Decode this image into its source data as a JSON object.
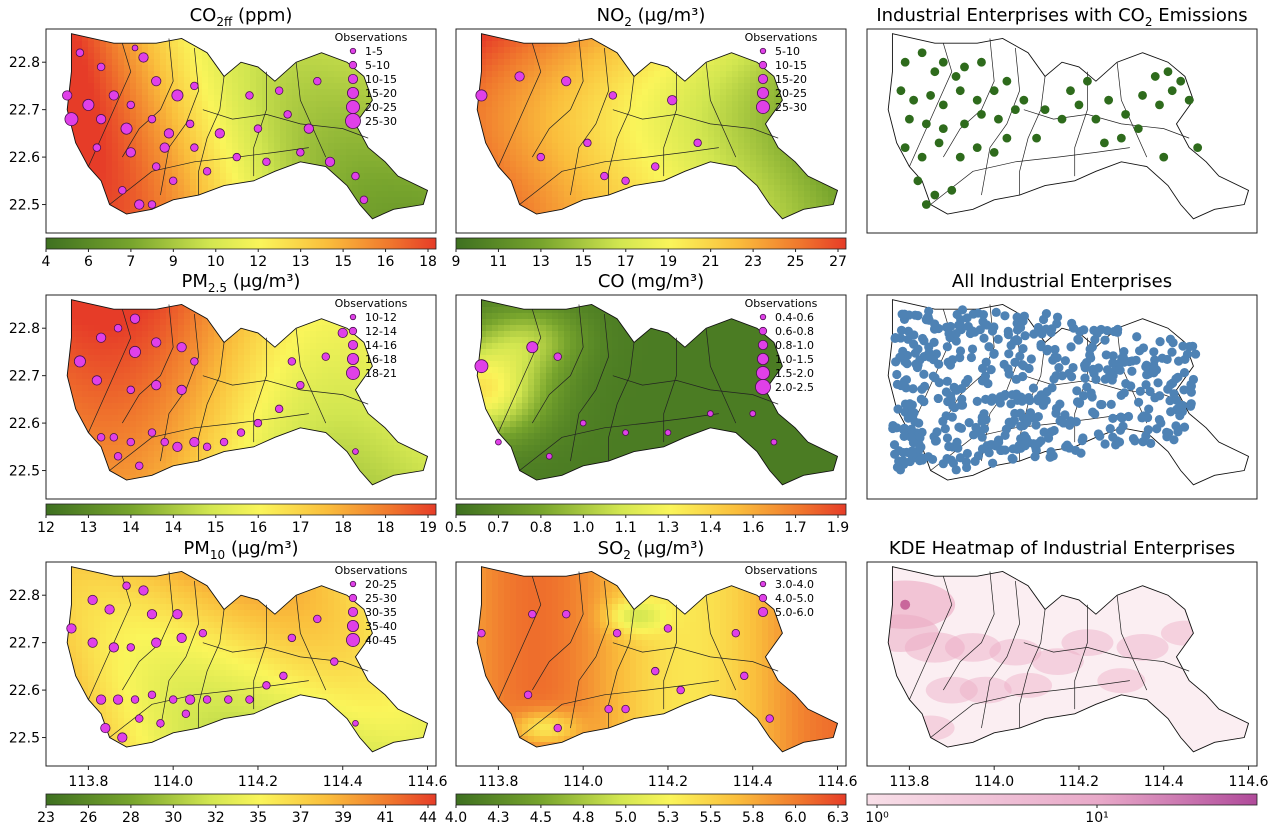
{
  "figure": {
    "x_ticks": [
      "113.8",
      "114.0",
      "114.2",
      "114.4",
      "114.6"
    ],
    "y_ticks": [
      "22.8",
      "22.7",
      "22.6",
      "22.5"
    ],
    "legend_title": "Observations"
  },
  "chart_data": [
    {
      "id": "co2ff",
      "type": "heatmap",
      "title_main": "CO",
      "title_sub": "2ff",
      "title_tail": " (ppm)",
      "legend": [
        "1-5",
        "5-10",
        "10-15",
        "15-20",
        "20-25",
        "25-30"
      ],
      "colorbar_ticks": [
        "4",
        "6",
        "7",
        "9",
        "10",
        "12",
        "13",
        "15",
        "16",
        "18"
      ],
      "colorbar_range": [
        4,
        18.5
      ],
      "colormap": "green-yellow-red",
      "observations": [
        [
          113.78,
          22.82,
          2
        ],
        [
          113.83,
          22.79,
          2
        ],
        [
          113.91,
          22.83,
          1
        ],
        [
          113.93,
          22.81,
          3
        ],
        [
          113.75,
          22.73,
          3
        ],
        [
          113.8,
          22.71,
          4
        ],
        [
          113.86,
          22.73,
          3
        ],
        [
          113.9,
          22.71,
          2
        ],
        [
          113.96,
          22.76,
          3
        ],
        [
          114.01,
          22.73,
          4
        ],
        [
          114.05,
          22.75,
          2
        ],
        [
          113.76,
          22.68,
          5
        ],
        [
          113.83,
          22.68,
          3
        ],
        [
          113.89,
          22.66,
          4
        ],
        [
          113.95,
          22.68,
          2
        ],
        [
          113.99,
          22.65,
          3
        ],
        [
          114.04,
          22.67,
          2
        ],
        [
          113.82,
          22.62,
          2
        ],
        [
          113.9,
          22.61,
          3
        ],
        [
          113.98,
          22.62,
          3
        ],
        [
          114.05,
          22.62,
          2
        ],
        [
          114.11,
          22.65,
          3
        ],
        [
          114.2,
          22.66,
          2
        ],
        [
          114.27,
          22.69,
          2
        ],
        [
          114.32,
          22.66,
          3
        ],
        [
          114.15,
          22.6,
          2
        ],
        [
          114.22,
          22.59,
          2
        ],
        [
          114.3,
          22.61,
          2
        ],
        [
          114.37,
          22.59,
          3
        ],
        [
          114.43,
          22.56,
          2
        ],
        [
          113.88,
          22.53,
          2
        ],
        [
          113.92,
          22.5,
          3
        ],
        [
          113.96,
          22.58,
          2
        ],
        [
          114.0,
          22.55,
          2
        ],
        [
          114.08,
          22.57,
          2
        ],
        [
          114.45,
          22.51,
          2
        ],
        [
          113.95,
          22.5,
          2
        ],
        [
          114.18,
          22.73,
          2
        ],
        [
          114.25,
          22.74,
          2
        ],
        [
          114.34,
          22.76,
          2
        ]
      ]
    },
    {
      "id": "no2",
      "type": "heatmap",
      "title_main": "NO",
      "title_sub": "2",
      "title_tail": " (μg/m³)",
      "legend": [
        "5-10",
        "10-15",
        "15-20",
        "20-25",
        "25-30"
      ],
      "colorbar_ticks": [
        "9",
        "11",
        "13",
        "15",
        "17",
        "19",
        "21",
        "23",
        "25",
        "27"
      ],
      "colorbar_range": [
        9,
        29
      ],
      "colormap": "green-yellow-red",
      "observations": [
        [
          113.76,
          22.73,
          4
        ],
        [
          113.85,
          22.77,
          3
        ],
        [
          113.96,
          22.76,
          3
        ],
        [
          114.07,
          22.73,
          2
        ],
        [
          114.21,
          22.72,
          3
        ],
        [
          113.9,
          22.6,
          2
        ],
        [
          114.01,
          22.63,
          2
        ],
        [
          114.05,
          22.56,
          2
        ],
        [
          114.1,
          22.55,
          2
        ],
        [
          114.17,
          22.58,
          2
        ],
        [
          114.27,
          22.63,
          2
        ]
      ]
    },
    {
      "id": "industrial_co2",
      "type": "scatter",
      "title_main": "Industrial Enterprises with CO",
      "title_sub": "2",
      "title_tail": " Emissions",
      "colormap": "dark-green-points",
      "points": [
        [
          113.79,
          22.8
        ],
        [
          113.83,
          22.82
        ],
        [
          113.86,
          22.78
        ],
        [
          113.88,
          22.8
        ],
        [
          113.91,
          22.77
        ],
        [
          113.93,
          22.79
        ],
        [
          113.97,
          22.8
        ],
        [
          113.78,
          22.74
        ],
        [
          113.81,
          22.72
        ],
        [
          113.85,
          22.73
        ],
        [
          113.88,
          22.71
        ],
        [
          113.92,
          22.74
        ],
        [
          113.96,
          22.72
        ],
        [
          114.0,
          22.74
        ],
        [
          114.03,
          22.76
        ],
        [
          113.8,
          22.68
        ],
        [
          113.84,
          22.67
        ],
        [
          113.88,
          22.66
        ],
        [
          113.93,
          22.67
        ],
        [
          113.97,
          22.69
        ],
        [
          114.01,
          22.68
        ],
        [
          114.05,
          22.7
        ],
        [
          113.79,
          22.62
        ],
        [
          113.83,
          22.6
        ],
        [
          113.87,
          22.63
        ],
        [
          113.92,
          22.6
        ],
        [
          113.96,
          22.62
        ],
        [
          114.0,
          22.61
        ],
        [
          113.82,
          22.55
        ],
        [
          113.86,
          22.52
        ],
        [
          113.9,
          22.53
        ],
        [
          113.84,
          22.5
        ],
        [
          114.12,
          22.7
        ],
        [
          114.16,
          22.68
        ],
        [
          114.2,
          22.71
        ],
        [
          114.24,
          22.68
        ],
        [
          114.27,
          22.72
        ],
        [
          114.31,
          22.69
        ],
        [
          114.35,
          22.73
        ],
        [
          114.39,
          22.71
        ],
        [
          114.42,
          22.74
        ],
        [
          114.3,
          22.64
        ],
        [
          114.34,
          22.66
        ],
        [
          114.26,
          22.63
        ],
        [
          114.38,
          22.77
        ],
        [
          114.41,
          22.78
        ],
        [
          114.44,
          22.76
        ],
        [
          114.46,
          22.72
        ],
        [
          114.48,
          22.62
        ],
        [
          114.4,
          22.6
        ],
        [
          114.1,
          22.64
        ],
        [
          114.07,
          22.72
        ],
        [
          114.03,
          22.64
        ],
        [
          114.18,
          22.74
        ],
        [
          114.22,
          22.76
        ]
      ]
    },
    {
      "id": "pm25",
      "type": "heatmap",
      "title_main": "PM",
      "title_sub": "2.5",
      "title_tail": " (μg/m³)",
      "legend": [
        "10-12",
        "12-14",
        "14-16",
        "16-18",
        "18-21"
      ],
      "colorbar_ticks": [
        "12",
        "13",
        "14",
        "14",
        "15",
        "16",
        "17",
        "18",
        "18",
        "19"
      ],
      "colorbar_range": [
        12,
        19.5
      ],
      "colormap": "green-yellow-red",
      "observations": [
        [
          113.78,
          22.73,
          4
        ],
        [
          113.83,
          22.78,
          3
        ],
        [
          113.87,
          22.8,
          2
        ],
        [
          113.91,
          22.82,
          3
        ],
        [
          113.91,
          22.75,
          4
        ],
        [
          113.96,
          22.77,
          3
        ],
        [
          114.02,
          22.76,
          3
        ],
        [
          114.05,
          22.73,
          2
        ],
        [
          113.82,
          22.69,
          3
        ],
        [
          113.9,
          22.67,
          2
        ],
        [
          113.96,
          22.68,
          3
        ],
        [
          114.02,
          22.67,
          3
        ],
        [
          113.83,
          22.57,
          2
        ],
        [
          113.86,
          22.57,
          2
        ],
        [
          113.9,
          22.56,
          2
        ],
        [
          113.95,
          22.58,
          2
        ],
        [
          113.98,
          22.56,
          2
        ],
        [
          114.01,
          22.55,
          3
        ],
        [
          114.05,
          22.56,
          3
        ],
        [
          114.08,
          22.55,
          2
        ],
        [
          114.12,
          22.56,
          2
        ],
        [
          114.16,
          22.58,
          2
        ],
        [
          113.87,
          22.53,
          2
        ],
        [
          113.92,
          22.51,
          2
        ],
        [
          114.2,
          22.6,
          2
        ],
        [
          114.25,
          22.63,
          2
        ],
        [
          114.3,
          22.68,
          2
        ],
        [
          114.36,
          22.74,
          2
        ],
        [
          114.4,
          22.79,
          3
        ],
        [
          114.28,
          22.73,
          2
        ],
        [
          114.43,
          22.54,
          1
        ]
      ]
    },
    {
      "id": "co",
      "type": "heatmap",
      "title_main": "CO",
      "title_sub": "",
      "title_tail": " (mg/m³)",
      "legend": [
        "0.4-0.6",
        "0.6-0.8",
        "0.8-1.0",
        "1.0-1.5",
        "1.5-2.0",
        "2.0-2.5"
      ],
      "colorbar_ticks": [
        "0.5",
        "0.7",
        "0.8",
        "1.0",
        "1.1",
        "1.3",
        "1.4",
        "1.6",
        "1.7",
        "1.9"
      ],
      "colorbar_range": [
        0.5,
        2.0
      ],
      "colormap": "green-yellow-red",
      "observations": [
        [
          113.76,
          22.72,
          5
        ],
        [
          113.88,
          22.76,
          4
        ],
        [
          113.94,
          22.74,
          2
        ],
        [
          113.8,
          22.56,
          1
        ],
        [
          113.92,
          22.53,
          1
        ],
        [
          114.0,
          22.6,
          1
        ],
        [
          114.1,
          22.58,
          1
        ],
        [
          114.2,
          22.58,
          1
        ],
        [
          114.3,
          22.62,
          1
        ],
        [
          114.4,
          22.62,
          1
        ],
        [
          114.45,
          22.56,
          1
        ]
      ]
    },
    {
      "id": "industrial_all",
      "type": "scatter",
      "title_main": "All Industrial Enterprises",
      "title_sub": "",
      "title_tail": "",
      "colormap": "steel-blue-points",
      "points": []
    },
    {
      "id": "pm10",
      "type": "heatmap",
      "title_main": "PM",
      "title_sub": "10",
      "title_tail": " (μg/m³)",
      "legend": [
        "20-25",
        "25-30",
        "30-35",
        "35-40",
        "40-45"
      ],
      "colorbar_ticks": [
        "23",
        "26",
        "28",
        "30",
        "32",
        "35",
        "37",
        "39",
        "41",
        "44"
      ],
      "colorbar_range": [
        23,
        44
      ],
      "colormap": "green-yellow-red",
      "observations": [
        [
          113.76,
          22.73,
          3
        ],
        [
          113.81,
          22.79,
          3
        ],
        [
          113.85,
          22.77,
          3
        ],
        [
          113.89,
          22.82,
          2
        ],
        [
          113.93,
          22.81,
          3
        ],
        [
          113.95,
          22.76,
          3
        ],
        [
          114.01,
          22.76,
          3
        ],
        [
          114.07,
          22.72,
          2
        ],
        [
          113.81,
          22.7,
          3
        ],
        [
          113.86,
          22.69,
          3
        ],
        [
          113.9,
          22.69,
          2
        ],
        [
          113.96,
          22.7,
          3
        ],
        [
          114.02,
          22.71,
          3
        ],
        [
          113.83,
          22.58,
          3
        ],
        [
          113.87,
          22.58,
          3
        ],
        [
          113.91,
          22.58,
          2
        ],
        [
          113.95,
          22.59,
          2
        ],
        [
          114.0,
          22.58,
          2
        ],
        [
          114.04,
          22.58,
          3
        ],
        [
          114.08,
          22.58,
          2
        ],
        [
          114.13,
          22.58,
          2
        ],
        [
          114.18,
          22.58,
          2
        ],
        [
          114.22,
          22.61,
          2
        ],
        [
          114.26,
          22.63,
          2
        ],
        [
          113.84,
          22.52,
          3
        ],
        [
          113.88,
          22.5,
          3
        ],
        [
          113.92,
          22.54,
          2
        ],
        [
          113.97,
          22.53,
          2
        ],
        [
          114.03,
          22.55,
          2
        ],
        [
          114.28,
          22.71,
          2
        ],
        [
          114.34,
          22.75,
          2
        ],
        [
          114.38,
          22.66,
          2
        ],
        [
          114.43,
          22.53,
          1
        ]
      ]
    },
    {
      "id": "so2",
      "type": "heatmap",
      "title_main": "SO",
      "title_sub": "2",
      "title_tail": " (μg/m³)",
      "legend": [
        "3.0-4.0",
        "4.0-5.0",
        "5.0-6.0"
      ],
      "colorbar_ticks": [
        "4.0",
        "4.3",
        "4.5",
        "4.8",
        "5.0",
        "5.3",
        "5.5",
        "5.8",
        "6.0",
        "6.3"
      ],
      "colorbar_range": [
        4.0,
        6.4
      ],
      "colormap": "green-yellow-red",
      "observations": [
        [
          113.76,
          22.72,
          2
        ],
        [
          113.88,
          22.76,
          2
        ],
        [
          113.96,
          22.76,
          2
        ],
        [
          114.08,
          22.72,
          2
        ],
        [
          114.2,
          22.73,
          2
        ],
        [
          114.36,
          22.72,
          2
        ],
        [
          113.87,
          22.59,
          2
        ],
        [
          113.94,
          22.52,
          2
        ],
        [
          114.06,
          22.56,
          2
        ],
        [
          114.1,
          22.56,
          2
        ],
        [
          114.17,
          22.64,
          2
        ],
        [
          114.23,
          22.6,
          2
        ],
        [
          114.38,
          22.63,
          2
        ],
        [
          114.44,
          22.54,
          2
        ]
      ]
    },
    {
      "id": "kde",
      "type": "heatmap",
      "title_main": "KDE Heatmap of Industrial Enterprises",
      "title_sub": "",
      "title_tail": "",
      "colorbar_ticks": [
        "10⁰",
        "10¹"
      ],
      "colorbar_scale": "log",
      "colormap": "pink-purple",
      "hotspots": [
        [
          113.79,
          22.78,
          0.9
        ],
        [
          113.78,
          22.72,
          0.6
        ],
        [
          113.86,
          22.69,
          0.4
        ],
        [
          113.95,
          22.69,
          0.35
        ],
        [
          114.05,
          22.68,
          0.3
        ],
        [
          114.15,
          22.66,
          0.3
        ],
        [
          114.22,
          22.7,
          0.3
        ],
        [
          114.35,
          22.69,
          0.3
        ],
        [
          114.3,
          22.62,
          0.25
        ],
        [
          113.9,
          22.6,
          0.3
        ],
        [
          113.98,
          22.6,
          0.3
        ],
        [
          114.08,
          22.61,
          0.25
        ],
        [
          113.85,
          22.52,
          0.25
        ],
        [
          114.45,
          22.72,
          0.25
        ]
      ]
    }
  ]
}
